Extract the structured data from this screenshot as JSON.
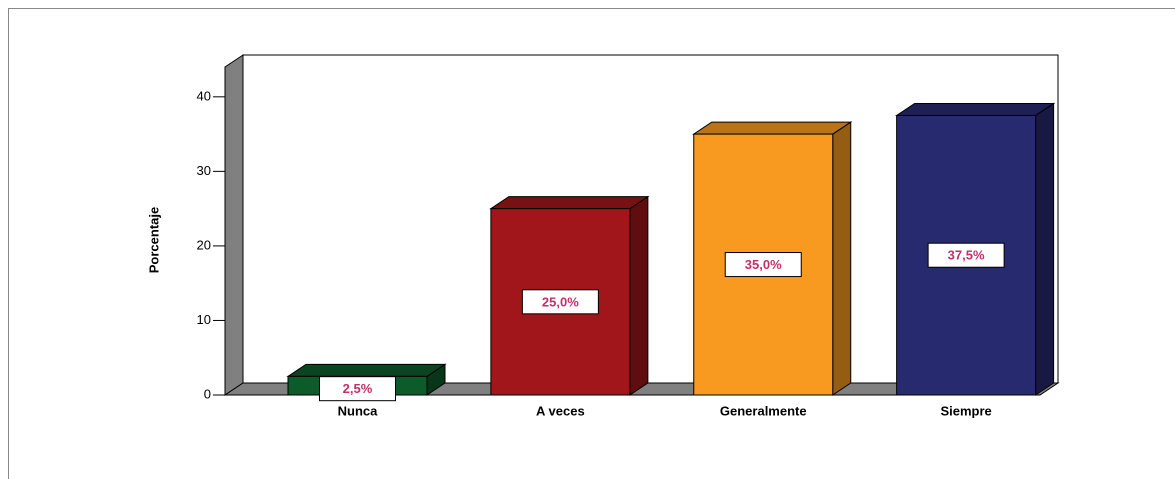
{
  "chart_data": {
    "type": "bar3d",
    "ylabel": "Porcentaje",
    "categories": [
      "Nunca",
      "A veces",
      "Generalmente",
      "Siempre"
    ],
    "values": [
      2.5,
      25.0,
      35.0,
      37.5
    ],
    "value_labels": [
      "2,5%",
      "25,0%",
      "35,0%",
      "37,5%"
    ],
    "colors": [
      "#0d5a2a",
      "#a0161b",
      "#f89a1f",
      "#282a70"
    ],
    "ylim": [
      0,
      44
    ],
    "yticks": [
      0,
      10,
      20,
      30,
      40
    ]
  }
}
